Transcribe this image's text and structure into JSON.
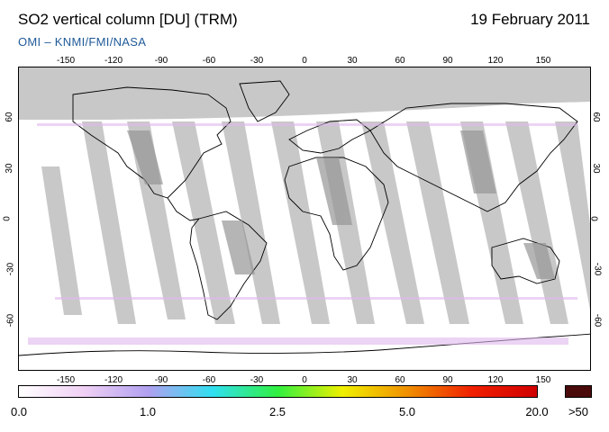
{
  "header": {
    "title": "SO2 vertical column [DU] (TRM)",
    "date": "19 February 2011",
    "source": "OMI  –  KNMI/FMI/NASA"
  },
  "map": {
    "projection": "equirectangular",
    "lon_range": [
      -180,
      180
    ],
    "lat_range": [
      -90,
      90
    ],
    "lon_ticks": [
      "-150",
      "-120",
      "-90",
      "-60",
      "-30",
      "0",
      "30",
      "60",
      "90",
      "120",
      "150"
    ],
    "lat_ticks": [
      "60",
      "30",
      "0",
      "-30",
      "-60"
    ],
    "colors": {
      "no_data": "#c8c8c8",
      "land_gap": "#969696",
      "coastline": "#000000",
      "polar_night": "#c8c8c8",
      "noise": "#e8c8f0"
    }
  },
  "colorbar": {
    "labels": [
      "0.0",
      "1.0",
      "2.5",
      "5.0",
      "20.0"
    ],
    "overflow_label": ">50",
    "overflow_color": "#4a0a0a",
    "colors": [
      "#ffffff",
      "#f0d0f4",
      "#b0a0f0",
      "#30e0f0",
      "#30f040",
      "#f0f000",
      "#f09000",
      "#f02000",
      "#d00000"
    ]
  }
}
